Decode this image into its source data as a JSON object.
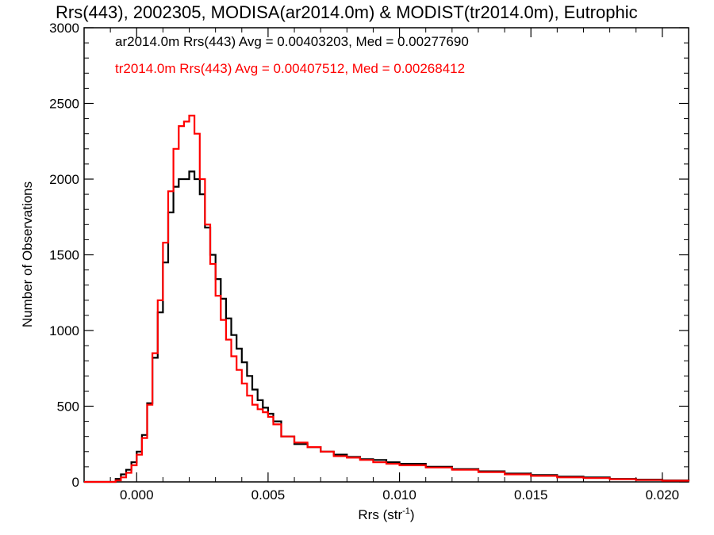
{
  "chart_data": {
    "type": "line",
    "title": "Rrs(443), 2002305, MODISA(ar2014.0m) & MODIST(tr2014.0m), Eutrophic",
    "xlabel": "Rrs (str",
    "xlabel_sup": "-1",
    "xlabel_end": ")",
    "ylabel": "Number of Observations",
    "xlim": [
      -0.002,
      0.021
    ],
    "ylim": [
      0,
      3000
    ],
    "x_ticks": [
      0.0,
      0.005,
      0.01,
      0.015,
      0.02
    ],
    "x_tick_labels": [
      "0.000",
      "0.005",
      "0.010",
      "0.015",
      "0.020"
    ],
    "y_ticks": [
      0,
      500,
      1000,
      1500,
      2000,
      2500,
      3000
    ],
    "y_tick_labels": [
      "0",
      "500",
      "1000",
      "1500",
      "2000",
      "2500",
      "3000"
    ],
    "grid": false,
    "legend_placement": "top-left",
    "annotations": [
      {
        "text": "ar2014.0m Rrs(443) Avg = 0.00403203, Med = 0.00277690",
        "color": "#000000"
      },
      {
        "text": "tr2014.0m Rrs(443) Avg = 0.00407512, Med = 0.00268412",
        "color": "#ff0000"
      }
    ],
    "series": [
      {
        "color": "#000000",
        "x": [
          -0.002,
          -0.001,
          -0.0008,
          -0.0006,
          -0.0004,
          -0.0002,
          0.0,
          0.0002,
          0.0004,
          0.0006,
          0.0008,
          0.001,
          0.0012,
          0.0014,
          0.0016,
          0.0018,
          0.002,
          0.0022,
          0.0024,
          0.0026,
          0.0028,
          0.003,
          0.0032,
          0.0034,
          0.0036,
          0.0038,
          0.004,
          0.0042,
          0.0044,
          0.0046,
          0.0048,
          0.005,
          0.0052,
          0.0055,
          0.006,
          0.0065,
          0.007,
          0.0075,
          0.008,
          0.0085,
          0.009,
          0.0095,
          0.01,
          0.011,
          0.012,
          0.013,
          0.014,
          0.015,
          0.016,
          0.017,
          0.018,
          0.019,
          0.02,
          0.021
        ],
        "y": [
          0,
          0,
          20,
          50,
          80,
          130,
          200,
          310,
          520,
          820,
          1120,
          1450,
          1780,
          1950,
          2000,
          2000,
          2050,
          2000,
          1900,
          1680,
          1500,
          1340,
          1210,
          1080,
          970,
          880,
          790,
          700,
          610,
          540,
          490,
          450,
          400,
          300,
          250,
          230,
          200,
          180,
          165,
          150,
          145,
          130,
          120,
          100,
          85,
          70,
          55,
          45,
          35,
          30,
          20,
          15,
          10,
          5
        ]
      },
      {
        "color": "#ff0000",
        "x": [
          -0.002,
          -0.001,
          -0.0008,
          -0.0006,
          -0.0004,
          -0.0002,
          0.0,
          0.0002,
          0.0004,
          0.0006,
          0.0008,
          0.001,
          0.0012,
          0.0014,
          0.0016,
          0.0018,
          0.002,
          0.0022,
          0.0024,
          0.0026,
          0.0028,
          0.003,
          0.0032,
          0.0034,
          0.0036,
          0.0038,
          0.004,
          0.0042,
          0.0044,
          0.0046,
          0.0048,
          0.005,
          0.0052,
          0.0055,
          0.006,
          0.0065,
          0.007,
          0.0075,
          0.008,
          0.0085,
          0.009,
          0.0095,
          0.01,
          0.011,
          0.012,
          0.013,
          0.014,
          0.015,
          0.016,
          0.017,
          0.018,
          0.019,
          0.02,
          0.021
        ],
        "y": [
          0,
          0,
          10,
          30,
          60,
          110,
          180,
          290,
          510,
          850,
          1200,
          1580,
          1920,
          2200,
          2350,
          2380,
          2420,
          2300,
          2000,
          1700,
          1440,
          1230,
          1070,
          940,
          830,
          740,
          650,
          570,
          510,
          480,
          460,
          430,
          380,
          300,
          260,
          230,
          200,
          170,
          160,
          145,
          130,
          120,
          110,
          95,
          80,
          65,
          50,
          40,
          30,
          25,
          18,
          12,
          8,
          4
        ]
      }
    ]
  }
}
